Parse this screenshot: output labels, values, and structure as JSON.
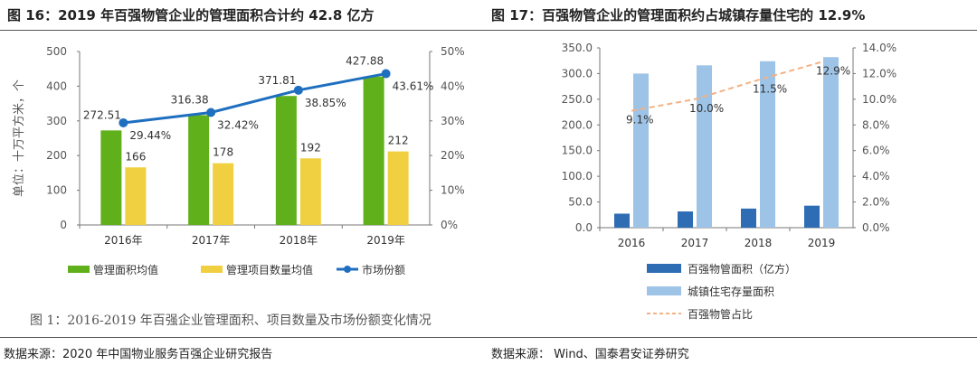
{
  "left": {
    "title": "图 16：2019 年百强物管企业的管理面积合计约 42.8 亿方",
    "caption": "图 1：2016-2019 年百强企业管理面积、项目数量及市场份额变化情况",
    "source": "数据来源：2020 年中国物业服务百强企业研究报告"
  },
  "right": {
    "title": "图 17：百强物管企业的管理面积约占城镇存量住宅的 12.9%",
    "source": "数据来源：   Wind、国泰君安证券研究"
  },
  "chart_data": [
    {
      "type": "bar",
      "categories": [
        "2016年",
        "2017年",
        "2018年",
        "2019年"
      ],
      "ylabel": "单位：十万平方米，个",
      "ylim": [
        0,
        500
      ],
      "yticks": [
        "0",
        "100",
        "200",
        "300",
        "400",
        "500"
      ],
      "y2lim": [
        0,
        50
      ],
      "y2ticks": [
        "0%",
        "10%",
        "20%",
        "30%",
        "40%",
        "50%"
      ],
      "series": [
        {
          "name": "管理面积均值",
          "kind": "bar",
          "color": "#5fb01a",
          "values": [
            272.51,
            316.38,
            371.81,
            427.88
          ],
          "labels": [
            "272.51",
            "316.38",
            "371.81",
            "427.88"
          ]
        },
        {
          "name": "管理项目数量均值",
          "kind": "bar",
          "color": "#f0d040",
          "values": [
            166,
            178,
            192,
            212
          ],
          "labels": [
            "166",
            "178",
            "192",
            "212"
          ]
        },
        {
          "name": "市场份额",
          "kind": "line",
          "axis": "right",
          "color": "#1f6fc0",
          "values": [
            29.44,
            32.42,
            38.85,
            43.61
          ],
          "labels": [
            "29.44%",
            "32.42%",
            "38.85%",
            "43.61%"
          ]
        }
      ],
      "legend": "bottom"
    },
    {
      "type": "bar",
      "categories": [
        "2016",
        "2017",
        "2018",
        "2019"
      ],
      "ylim": [
        0,
        350
      ],
      "yticks": [
        "0.0",
        "50.0",
        "100.0",
        "150.0",
        "200.0",
        "250.0",
        "300.0",
        "350.0"
      ],
      "y2lim": [
        0,
        14
      ],
      "y2ticks": [
        "0.0%",
        "2.0%",
        "4.0%",
        "6.0%",
        "8.0%",
        "10.0%",
        "12.0%",
        "14.0%"
      ],
      "series": [
        {
          "name": "百强物管面积（亿方）",
          "kind": "bar",
          "color": "#2e6db4",
          "values": [
            27.3,
            31.6,
            37.2,
            42.8
          ]
        },
        {
          "name": "城镇住宅存量面积",
          "kind": "bar",
          "color": "#9dc3e6",
          "values": [
            300,
            316,
            324,
            332
          ]
        },
        {
          "name": "百强物管占比",
          "kind": "line",
          "axis": "right",
          "dashed": true,
          "color": "#f4b183",
          "values": [
            9.1,
            10.0,
            11.5,
            12.9
          ],
          "labels": [
            "9.1%",
            "10.0%",
            "11.5%",
            "12.9%"
          ]
        }
      ],
      "legend": "right-bottom"
    }
  ]
}
